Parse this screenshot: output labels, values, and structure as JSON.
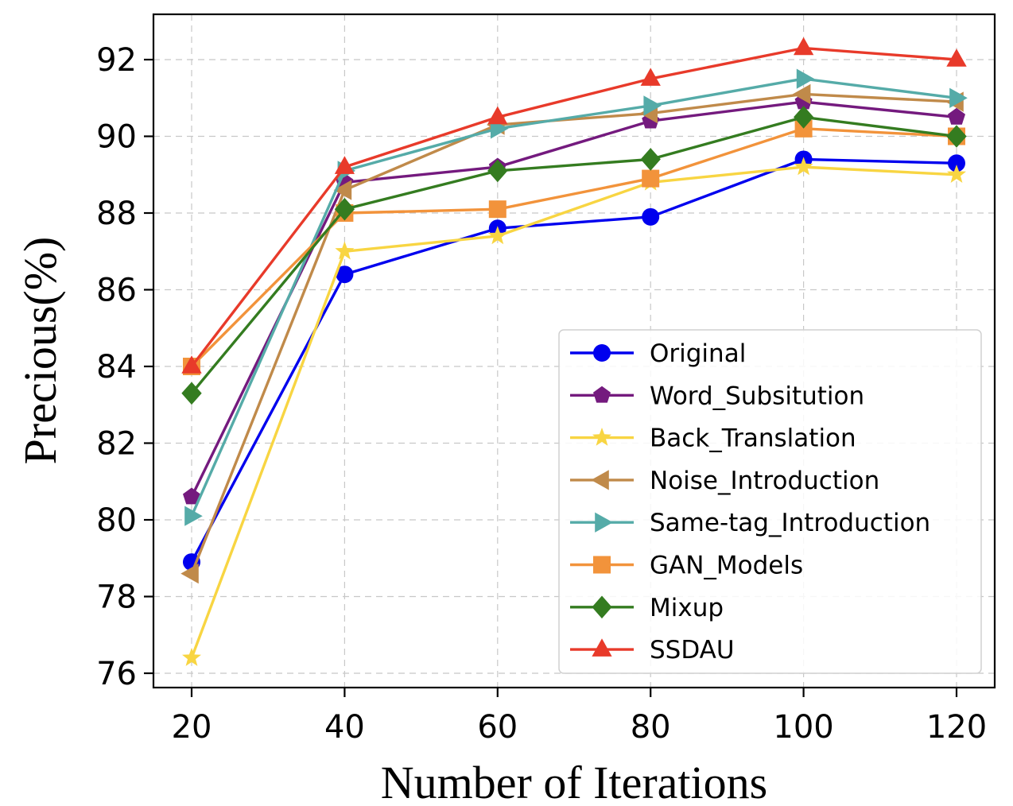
{
  "chart_data": {
    "type": "line",
    "xlabel": "Number of Iterations",
    "ylabel": "Precious(%)",
    "x": [
      20,
      40,
      60,
      80,
      100,
      120
    ],
    "xlim": [
      15,
      125
    ],
    "ylim": [
      75.6,
      93.0
    ],
    "xticks": [
      "20",
      "40",
      "60",
      "80",
      "100",
      "120"
    ],
    "yticks": [
      "76",
      "78",
      "80",
      "82",
      "84",
      "86",
      "88",
      "90",
      "92"
    ],
    "grid": true,
    "legend_position": "lower-right",
    "series": [
      {
        "name": "Original",
        "color": "#0000ee",
        "marker": "circle",
        "values": [
          78.9,
          86.4,
          87.6,
          87.9,
          89.4,
          89.3
        ]
      },
      {
        "name": "Word_Subsitution",
        "color": "#741a7e",
        "marker": "pentagon",
        "values": [
          80.6,
          88.8,
          89.2,
          90.4,
          90.9,
          90.5
        ]
      },
      {
        "name": "Back_Translation",
        "color": "#f8d542",
        "marker": "star",
        "values": [
          76.4,
          87.0,
          87.4,
          88.8,
          89.2,
          89.0
        ]
      },
      {
        "name": "Noise_Introduction",
        "color": "#c08a4a",
        "marker": "triangle-left",
        "values": [
          78.6,
          88.6,
          90.3,
          90.6,
          91.1,
          90.9
        ]
      },
      {
        "name": "Same-tag_Introduction",
        "color": "#55aba8",
        "marker": "triangle-right",
        "values": [
          80.1,
          89.1,
          90.2,
          90.8,
          91.5,
          91.0
        ]
      },
      {
        "name": "GAN_Models",
        "color": "#f2933b",
        "marker": "square",
        "values": [
          84.0,
          88.0,
          88.1,
          88.9,
          90.2,
          90.0
        ]
      },
      {
        "name": "Mixup",
        "color": "#347c20",
        "marker": "diamond",
        "values": [
          83.3,
          88.1,
          89.1,
          89.4,
          90.5,
          90.0
        ]
      },
      {
        "name": "SSDAU",
        "color": "#e83a2a",
        "marker": "triangle-up",
        "values": [
          84.0,
          89.2,
          90.5,
          91.5,
          92.3,
          92.0
        ]
      }
    ]
  }
}
